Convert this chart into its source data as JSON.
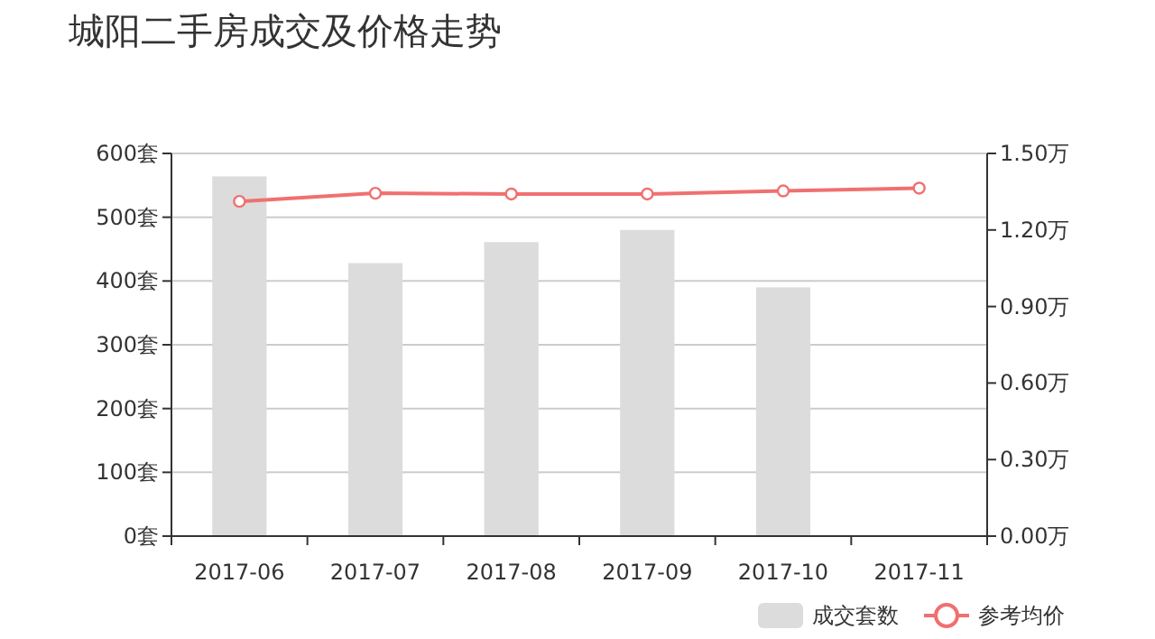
{
  "chart_data": {
    "type": "bar",
    "title": "城阳二手房成交及价格走势",
    "categories": [
      "2017-06",
      "2017-07",
      "2017-08",
      "2017-09",
      "2017-10",
      "2017-11"
    ],
    "series": [
      {
        "name": "成交套数",
        "color": "#dcdcdc",
        "values": [
          564,
          428,
          461,
          480,
          390,
          null
        ]
      },
      {
        "name": "参考均价",
        "type": "line",
        "axis": "y2",
        "color": "#f07070",
        "marker": "circle",
        "values": [
          1.312,
          1.344,
          1.341,
          1.341,
          1.353,
          1.364
        ]
      }
    ],
    "ylim": [
      0,
      600
    ],
    "yticks": [
      {
        "value": 0,
        "label": "0套"
      },
      {
        "value": 100,
        "label": "100套"
      },
      {
        "value": 200,
        "label": "200套"
      },
      {
        "value": 300,
        "label": "300套"
      },
      {
        "value": 400,
        "label": "400套"
      },
      {
        "value": 500,
        "label": "500套"
      },
      {
        "value": 600,
        "label": "600套"
      }
    ],
    "y2lim": [
      0,
      1.5
    ],
    "y2ticks": [
      {
        "value": 0,
        "label": "0.00万"
      },
      {
        "value": 0.3,
        "label": "0.30万"
      },
      {
        "value": 0.6,
        "label": "0.60万"
      },
      {
        "value": 0.9,
        "label": "0.90万"
      },
      {
        "value": 1.2,
        "label": "1.20万"
      },
      {
        "value": 1.5,
        "label": "1.50万"
      }
    ],
    "grid": "y",
    "legend": "bottom right"
  }
}
